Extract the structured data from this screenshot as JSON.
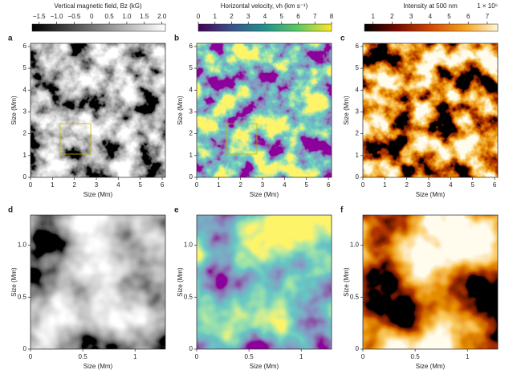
{
  "chart_data": [
    {
      "type": "image",
      "panel": "a",
      "xlabel": "Size (Mm)",
      "ylabel": "Size (Mm)",
      "xlim": [
        0,
        6.144
      ],
      "ylim": [
        0,
        6.144
      ],
      "xticks": [
        0,
        1,
        2,
        3,
        4,
        5,
        6
      ],
      "yticks": [
        0,
        1,
        2,
        3,
        4,
        5,
        6
      ],
      "colormap": [
        "#000000",
        "#ffffff"
      ],
      "colorbar": {
        "title": "Vertical magnetic field, Bz (kG)",
        "lim": [
          -1.7,
          2.1
        ],
        "ticks": [
          {
            "value": -1.5,
            "label": "−1.5"
          },
          {
            "value": -1,
            "label": "−1.0"
          },
          {
            "value": -0.5,
            "label": "−0.5"
          },
          0,
          0.5,
          {
            "value": 1,
            "label": "1.0"
          },
          1.5,
          {
            "value": 2,
            "label": "2.0"
          }
        ]
      }
    },
    {
      "type": "image",
      "panel": "b",
      "xlabel": "Size (Mm)",
      "ylabel": "Size (Mm)",
      "xlim": [
        0,
        6.144
      ],
      "ylim": [
        0,
        6.144
      ],
      "xticks": [
        0,
        1,
        2,
        3,
        4,
        5,
        6
      ],
      "yticks": [
        0,
        1,
        2,
        3,
        4,
        5,
        6
      ],
      "colormap": [
        "#440154",
        "#3b528b",
        "#21918c",
        "#5ec962",
        "#fde725"
      ],
      "colorbar": {
        "title": "Horizontal velocity, vh (km s⁻¹)",
        "lim": [
          0,
          8
        ],
        "ticks": [
          0,
          1,
          2,
          3,
          4,
          5,
          6,
          7,
          8
        ]
      }
    },
    {
      "type": "image",
      "panel": "c",
      "xlabel": "Size (Mm)",
      "ylabel": "Size (Mm)",
      "xlim": [
        0,
        6.144
      ],
      "ylim": [
        0,
        6.144
      ],
      "xticks": [
        0,
        1,
        2,
        3,
        4,
        5,
        6
      ],
      "yticks": [
        0,
        1,
        2,
        3,
        4,
        5,
        6
      ],
      "colormap": [
        "#000000",
        "#7a0a00",
        "#d24a00",
        "#f5a020",
        "#fff8d8"
      ],
      "colorbar": {
        "title": "Intensity at 500 nm",
        "multiplier": "1 × 10⁶",
        "lim": [
          0.55,
          7.55
        ],
        "ticks": [
          1,
          2,
          3,
          4,
          5,
          6,
          7
        ]
      }
    },
    {
      "type": "image",
      "panel": "d",
      "xlabel": "Size (Mm)",
      "ylabel": "Size (Mm)",
      "xlim": [
        0,
        1.29
      ],
      "ylim": [
        0,
        1.29
      ],
      "xticks": [
        0,
        0.5,
        1
      ],
      "yticks": [
        0,
        0.5,
        {
          "value": 1,
          "label": "1.0"
        }
      ],
      "colormap": [
        "#000000",
        "#ffffff"
      ]
    },
    {
      "type": "image",
      "panel": "e",
      "xlabel": "Size (Mm)",
      "ylabel": "Size (Mm)",
      "xlim": [
        0,
        1.29
      ],
      "ylim": [
        0,
        1.29
      ],
      "xticks": [
        0,
        0.5,
        1
      ],
      "yticks": [
        0,
        0.5,
        {
          "value": 1,
          "label": "1.0"
        }
      ],
      "colormap": [
        "#440154",
        "#3b528b",
        "#21918c",
        "#5ec962",
        "#fde725"
      ]
    },
    {
      "type": "image",
      "panel": "f",
      "xlabel": "Size (Mm)",
      "ylabel": "Size (Mm)",
      "xlim": [
        0,
        1.29
      ],
      "ylim": [
        0,
        1.29
      ],
      "xticks": [
        0,
        0.5,
        1
      ],
      "yticks": [
        0,
        0.5,
        {
          "value": 1,
          "label": "1.0"
        }
      ],
      "colormap": [
        "#000000",
        "#7a0a00",
        "#d24a00",
        "#f5a020",
        "#fff8d8"
      ]
    }
  ]
}
